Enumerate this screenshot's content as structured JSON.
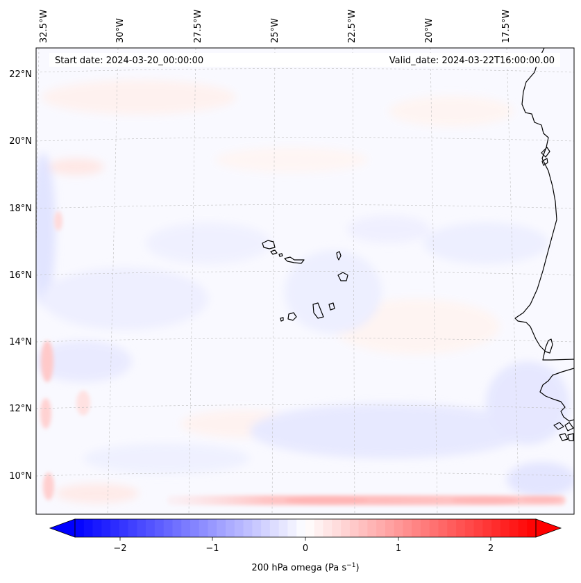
{
  "header": {
    "start_date": "Start date: 2024-03-20_00:00:00",
    "valid_date": "Valid_date: 2024-03-22T16:00:00.00"
  },
  "map": {
    "projection": "lambert-conformal",
    "lon_labels": [
      "32.5°W",
      "30°W",
      "27.5°W",
      "25°W",
      "22.5°W",
      "20°W",
      "17.5°W"
    ],
    "lat_labels": [
      "22°N",
      "20°N",
      "18°N",
      "16°N",
      "14°N",
      "12°N",
      "10°N"
    ],
    "gridlines": true,
    "coastline_color": "#000000"
  },
  "colorbar": {
    "label_main": "200 hPa omega (Pa s",
    "label_exp": "−1",
    "label_close": ")",
    "ticks": [
      "−2",
      "−1",
      "0",
      "1",
      "2"
    ],
    "min": -2.6,
    "max": 2.6,
    "colormap": "bwr",
    "extend": "both",
    "low_color": "#0000ff",
    "mid_color": "#ffffff",
    "high_color": "#ff0000"
  }
}
